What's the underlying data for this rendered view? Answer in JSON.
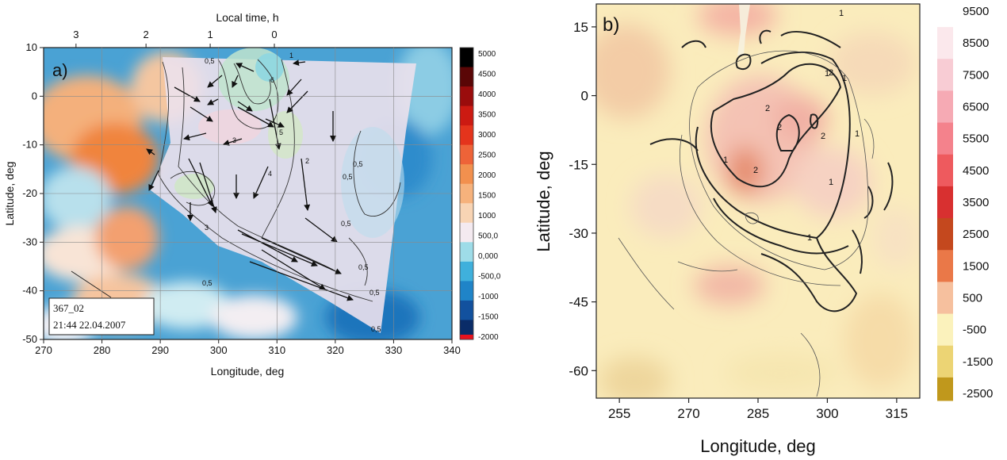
{
  "chart_data": [
    {
      "type": "heatmap",
      "panel_label": "a)",
      "title": "",
      "xlabel": "Longitude, deg",
      "ylabel": "Latitude, deg",
      "top_axis_label": "Local time, h",
      "xlim": [
        270,
        340
      ],
      "ylim": [
        -50,
        10
      ],
      "x_ticks": [
        270,
        280,
        290,
        300,
        310,
        320,
        330,
        340
      ],
      "y_ticks": [
        -50,
        -40,
        -30,
        -20,
        -10,
        0,
        10
      ],
      "local_time_ticks": [
        {
          "label": "3",
          "lon": 278
        },
        {
          "label": "2",
          "lon": 290
        },
        {
          "label": "1",
          "lon": 301
        },
        {
          "label": "0",
          "lon": 312
        }
      ],
      "grid": true,
      "colorbar": {
        "position": "right",
        "ticks": [
          "5000",
          "4500",
          "4000",
          "3500",
          "3000",
          "2500",
          "2000",
          "1500",
          "1000",
          "500,0",
          "0,000",
          "-500,0",
          "-1000",
          "-1500",
          "-2000"
        ],
        "colors": [
          "#000000",
          "#5a0606",
          "#9a0c0c",
          "#cc1a12",
          "#e4341c",
          "#ee6338",
          "#f2904e",
          "#f6b27c",
          "#f8d4b4",
          "#f4eaf0",
          "#9edce8",
          "#3fb0dc",
          "#1f84c8",
          "#12519e",
          "#0a2c68"
        ]
      },
      "contour_labels": [
        "0,5",
        "1",
        "2",
        "3",
        "4",
        "5",
        "6"
      ],
      "info_box": [
        "367_02",
        "21:44 22.04.2007"
      ]
    },
    {
      "type": "heatmap",
      "panel_label": "b)",
      "title": "",
      "xlabel": "Longitude, deg",
      "ylabel": "Latitude, deg",
      "xlim": [
        250,
        320
      ],
      "ylim": [
        -66,
        20
      ],
      "x_ticks": [
        255,
        270,
        285,
        300,
        315
      ],
      "y_ticks": [
        -60,
        -45,
        -30,
        -15,
        0,
        15
      ],
      "colorbar": {
        "position": "right",
        "ticks": [
          "9500",
          "8500",
          "7500",
          "6500",
          "5500",
          "4500",
          "3500",
          "2500",
          "1500",
          "500",
          "-500",
          "-1500",
          "-2500"
        ],
        "colors": [
          "#ffffff",
          "#fbe8ec",
          "#f8ccd4",
          "#f6aab4",
          "#f4828c",
          "#ee5a5e",
          "#d83030",
          "#c4481e",
          "#ea7848",
          "#f6c09e",
          "#fbf2bc",
          "#ecd474",
          "#c0981c"
        ]
      },
      "contour_labels": [
        "1",
        "2"
      ]
    }
  ]
}
